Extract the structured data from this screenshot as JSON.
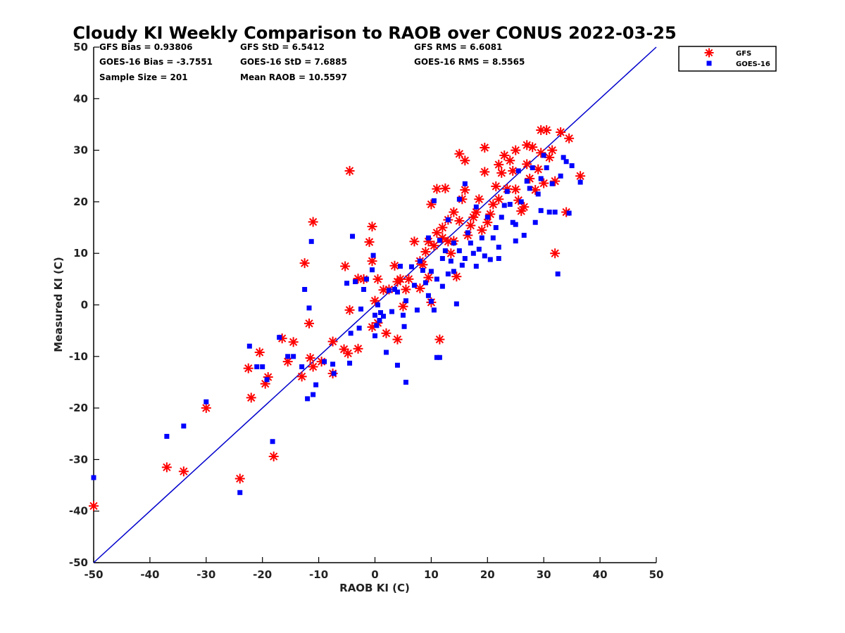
{
  "chart_data": {
    "type": "scatter",
    "title": "Cloudy KI Weekly Comparison to RAOB over CONUS 2022-03-25",
    "xlabel": "RAOB KI (C)",
    "ylabel": "Measured KI (C)",
    "xlim": [
      -50,
      50
    ],
    "ylim": [
      -50,
      50
    ],
    "xticks": [
      -50,
      -40,
      -30,
      -20,
      -10,
      0,
      10,
      20,
      30,
      40,
      50
    ],
    "yticks": [
      -50,
      -40,
      -30,
      -20,
      -10,
      0,
      10,
      20,
      30,
      40,
      50
    ],
    "grid": false,
    "legend_position": "top-right outside",
    "reference_line": {
      "name": "1:1 line",
      "color": "#0000cc",
      "from": [
        -50,
        -50
      ],
      "to": [
        50,
        50
      ]
    },
    "stats": [
      [
        "GFS Bias = 0.93806",
        "GFS StD = 6.5412",
        "GFS RMS = 6.6081"
      ],
      [
        "GOES-16 Bias = -3.7551",
        "GOES-16 StD = 7.6885",
        "GOES-16 RMS = 8.5565"
      ],
      [
        "Sample Size = 201",
        "Mean RAOB = 10.5597",
        ""
      ]
    ],
    "series": [
      {
        "name": "GFS",
        "marker": "asterisk",
        "color": "#ff0000",
        "points": [
          [
            -50,
            -39
          ],
          [
            -37,
            -31.5
          ],
          [
            -34,
            -32.3
          ],
          [
            -30,
            -20
          ],
          [
            -24,
            -33.7
          ],
          [
            -22,
            -18
          ],
          [
            -22.5,
            -12.3
          ],
          [
            -20.5,
            -9.2
          ],
          [
            -19.5,
            -15.3
          ],
          [
            -19,
            -14
          ],
          [
            -18,
            -29.4
          ],
          [
            -16.5,
            -6.5
          ],
          [
            -15.5,
            -11
          ],
          [
            -14.5,
            -7.2
          ],
          [
            -13,
            -13.9
          ],
          [
            -12.5,
            8.1
          ],
          [
            -11.7,
            -3.6
          ],
          [
            -11.5,
            -10.3
          ],
          [
            -11,
            16.1
          ],
          [
            -11,
            -12
          ],
          [
            -9.5,
            -11
          ],
          [
            -7.5,
            -7.1
          ],
          [
            -7.5,
            -13.3
          ],
          [
            -5.5,
            -8.6
          ],
          [
            -5.3,
            7.5
          ],
          [
            -4.5,
            26
          ],
          [
            -4.5,
            -1
          ],
          [
            -4.8,
            -9.4
          ],
          [
            -3,
            -8.5
          ],
          [
            -3,
            5.1
          ],
          [
            -2,
            5
          ],
          [
            -1,
            12.2
          ],
          [
            -0.5,
            -4.3
          ],
          [
            -0.5,
            15.2
          ],
          [
            -0.5,
            8.5
          ],
          [
            0,
            0.8
          ],
          [
            0.5,
            5
          ],
          [
            0.5,
            -3.5
          ],
          [
            1.5,
            2.9
          ],
          [
            2,
            -5.5
          ],
          [
            2.5,
            3
          ],
          [
            3.5,
            7.6
          ],
          [
            4,
            4.5
          ],
          [
            4,
            -6.7
          ],
          [
            4.5,
            5
          ],
          [
            5,
            -0.3
          ],
          [
            5.5,
            3
          ],
          [
            6,
            5
          ],
          [
            7,
            12.3
          ],
          [
            8,
            8.5
          ],
          [
            8,
            3.2
          ],
          [
            8.5,
            7.8
          ],
          [
            9,
            10.3
          ],
          [
            9.5,
            12.3
          ],
          [
            9.5,
            5.3
          ],
          [
            10,
            19.5
          ],
          [
            10,
            0.5
          ],
          [
            10.5,
            11.5
          ],
          [
            11,
            22.5
          ],
          [
            11,
            14
          ],
          [
            11.5,
            -6.7
          ],
          [
            12,
            13
          ],
          [
            12,
            15
          ],
          [
            12.5,
            22.6
          ],
          [
            13,
            12.3
          ],
          [
            13,
            16.5
          ],
          [
            13.5,
            10
          ],
          [
            14,
            18
          ],
          [
            14,
            12.4
          ],
          [
            14.5,
            5.5
          ],
          [
            15,
            29.3
          ],
          [
            15,
            16.3
          ],
          [
            15.5,
            20.5
          ],
          [
            16,
            28
          ],
          [
            16,
            22.3
          ],
          [
            16.5,
            13.5
          ],
          [
            17,
            15.4
          ],
          [
            17.5,
            17
          ],
          [
            18,
            18
          ],
          [
            18.5,
            20.5
          ],
          [
            19,
            14.5
          ],
          [
            19.5,
            25.8
          ],
          [
            19.5,
            30.5
          ],
          [
            20,
            16
          ],
          [
            20.5,
            17.6
          ],
          [
            21,
            19.5
          ],
          [
            21.5,
            23
          ],
          [
            22,
            20.5
          ],
          [
            22,
            27.2
          ],
          [
            22.5,
            25.6
          ],
          [
            23,
            29
          ],
          [
            23.5,
            22.5
          ],
          [
            24,
            28
          ],
          [
            24.5,
            26
          ],
          [
            25,
            30
          ],
          [
            25,
            22.4
          ],
          [
            25.5,
            20.3
          ],
          [
            26,
            18.2
          ],
          [
            26.5,
            19
          ],
          [
            27,
            31
          ],
          [
            27,
            27.3
          ],
          [
            27.5,
            24.5
          ],
          [
            28,
            30.6
          ],
          [
            28.5,
            22.3
          ],
          [
            29,
            26.3
          ],
          [
            29.5,
            33.9
          ],
          [
            29.5,
            29.5
          ],
          [
            30,
            23.6
          ],
          [
            30.5,
            33.9
          ],
          [
            31,
            28.6
          ],
          [
            31.5,
            30
          ],
          [
            32,
            24
          ],
          [
            32,
            10
          ],
          [
            33,
            33.5
          ],
          [
            34,
            18
          ],
          [
            34.5,
            32.3
          ],
          [
            36.5,
            25
          ]
        ]
      },
      {
        "name": "GOES-16",
        "marker": "square",
        "color": "#0000ff",
        "points": [
          [
            -50,
            -33.5
          ],
          [
            -37,
            -25.5
          ],
          [
            -34,
            -23.5
          ],
          [
            -30,
            -18.8
          ],
          [
            -24,
            -36.4
          ],
          [
            -22.3,
            -8
          ],
          [
            -21,
            -12
          ],
          [
            -20,
            -12
          ],
          [
            -19.2,
            -14.5
          ],
          [
            -18.2,
            -26.5
          ],
          [
            -17,
            -6.3
          ],
          [
            -15.5,
            -10
          ],
          [
            -14.5,
            -10
          ],
          [
            -13,
            -12
          ],
          [
            -12.5,
            3
          ],
          [
            -12,
            -18.2
          ],
          [
            -11.7,
            -0.6
          ],
          [
            -11.3,
            12.3
          ],
          [
            -11,
            -17.4
          ],
          [
            -10.5,
            -15.5
          ],
          [
            -9,
            -11
          ],
          [
            -7.5,
            -11.5
          ],
          [
            -7.3,
            -13.3
          ],
          [
            -5,
            4.2
          ],
          [
            -4.5,
            -11.3
          ],
          [
            -4.3,
            -5.5
          ],
          [
            -4,
            13.3
          ],
          [
            -3.5,
            4.5
          ],
          [
            -2.8,
            -4.5
          ],
          [
            -2.5,
            -0.8
          ],
          [
            -2,
            3
          ],
          [
            -1.5,
            5
          ],
          [
            -0.5,
            6.8
          ],
          [
            -0.3,
            9.6
          ],
          [
            0,
            -6
          ],
          [
            0,
            -2
          ],
          [
            0.3,
            -4
          ],
          [
            0.5,
            0
          ],
          [
            0.8,
            -3
          ],
          [
            1,
            -1.5
          ],
          [
            1.5,
            -2.2
          ],
          [
            2,
            -9.2
          ],
          [
            2.5,
            2.8
          ],
          [
            3,
            -1.3
          ],
          [
            3.5,
            3
          ],
          [
            4,
            2.5
          ],
          [
            4,
            -11.7
          ],
          [
            4.5,
            7.5
          ],
          [
            5,
            -2
          ],
          [
            5.2,
            -4.2
          ],
          [
            5.5,
            -15
          ],
          [
            5.5,
            0.8
          ],
          [
            6.5,
            7.4
          ],
          [
            7,
            3.8
          ],
          [
            7.5,
            -1
          ],
          [
            8,
            8.5
          ],
          [
            8.5,
            6.7
          ],
          [
            9,
            4.3
          ],
          [
            9.5,
            13
          ],
          [
            9.5,
            1.8
          ],
          [
            10,
            6.5
          ],
          [
            10,
            0.7
          ],
          [
            10.5,
            -1
          ],
          [
            10.5,
            20.2
          ],
          [
            11,
            5
          ],
          [
            11,
            -10.2
          ],
          [
            11.5,
            -10.2
          ],
          [
            11.5,
            12.5
          ],
          [
            12,
            9
          ],
          [
            12,
            3.6
          ],
          [
            12.5,
            10.5
          ],
          [
            13,
            16.5
          ],
          [
            13,
            6
          ],
          [
            13.5,
            8.5
          ],
          [
            14,
            6.5
          ],
          [
            14,
            12
          ],
          [
            14.5,
            0.2
          ],
          [
            15,
            10.5
          ],
          [
            15,
            20.5
          ],
          [
            15.5,
            7.7
          ],
          [
            16,
            9
          ],
          [
            16,
            23.5
          ],
          [
            16.5,
            14
          ],
          [
            17,
            12
          ],
          [
            17.5,
            10
          ],
          [
            18,
            7.5
          ],
          [
            18,
            19
          ],
          [
            18.5,
            10.8
          ],
          [
            19,
            13
          ],
          [
            19.5,
            9.5
          ],
          [
            20,
            17
          ],
          [
            20.5,
            8.8
          ],
          [
            21,
            13
          ],
          [
            21.5,
            15
          ],
          [
            22,
            11.2
          ],
          [
            22,
            9
          ],
          [
            22.5,
            17
          ],
          [
            23,
            19.3
          ],
          [
            23.5,
            22
          ],
          [
            24,
            19.5
          ],
          [
            24.5,
            16
          ],
          [
            25,
            15.6
          ],
          [
            25,
            12.4
          ],
          [
            25.5,
            26
          ],
          [
            26,
            20
          ],
          [
            26.5,
            13.5
          ],
          [
            27,
            24
          ],
          [
            27.5,
            22.6
          ],
          [
            28,
            26.6
          ],
          [
            28.5,
            16
          ],
          [
            29,
            21.5
          ],
          [
            29.5,
            24.5
          ],
          [
            29.5,
            18.3
          ],
          [
            30,
            29
          ],
          [
            30.5,
            26.6
          ],
          [
            31,
            18
          ],
          [
            31.5,
            23.5
          ],
          [
            32,
            18
          ],
          [
            32.5,
            6
          ],
          [
            33,
            25
          ],
          [
            33.5,
            28.6
          ],
          [
            34,
            27.8
          ],
          [
            34.5,
            17.8
          ],
          [
            35,
            27
          ],
          [
            36.5,
            23.8
          ]
        ]
      }
    ]
  }
}
